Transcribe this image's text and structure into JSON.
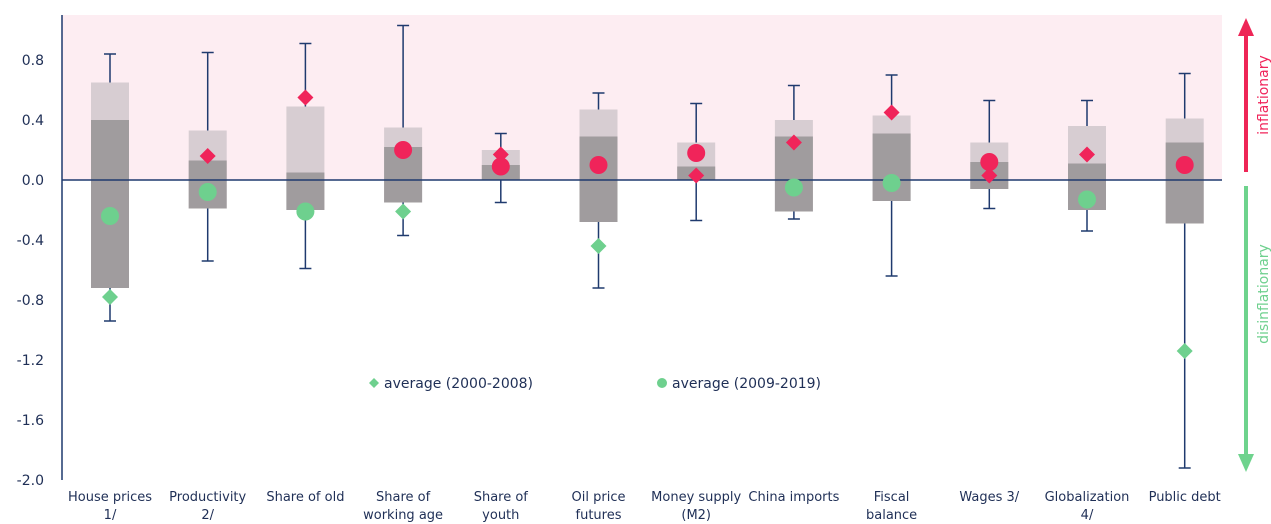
{
  "chart_data": {
    "type": "box-range",
    "ylim": [
      -2.0,
      1.0
    ],
    "yticks": [
      "0.8",
      "0.4",
      "0.0",
      "-0.4",
      "-0.8",
      "-1.2",
      "-1.6",
      "-2.0"
    ],
    "ytick_values": [
      0.8,
      0.4,
      0.0,
      -0.4,
      -0.8,
      -1.2,
      -1.6,
      -2.0
    ],
    "categories": [
      [
        "House prices",
        "1/"
      ],
      [
        "Productivity",
        "2/"
      ],
      [
        "Share of old"
      ],
      [
        "Share of",
        "working age"
      ],
      [
        "Share of",
        "youth"
      ],
      [
        "Oil price",
        "futures"
      ],
      [
        "Money supply",
        "(M2)"
      ],
      [
        "China imports"
      ],
      [
        "Fiscal",
        "balance"
      ],
      [
        "Wages 3/"
      ],
      [
        "Globalization",
        "4/"
      ],
      [
        "Public debt"
      ]
    ],
    "whisker_low": [
      -0.94,
      -0.54,
      -0.59,
      -0.37,
      -0.15,
      -0.72,
      -0.27,
      -0.26,
      -0.64,
      -0.19,
      -0.34,
      -1.92
    ],
    "whisker_high": [
      0.84,
      0.85,
      0.91,
      1.03,
      0.31,
      0.58,
      0.51,
      0.63,
      0.7,
      0.53,
      0.53,
      0.71
    ],
    "outer_low": [
      -0.72,
      -0.19,
      -0.2,
      -0.15,
      0.0,
      -0.28,
      0.0,
      -0.21,
      -0.14,
      -0.06,
      -0.2,
      -0.29
    ],
    "outer_high": [
      0.65,
      0.33,
      0.49,
      0.35,
      0.2,
      0.47,
      0.25,
      0.4,
      0.43,
      0.25,
      0.36,
      0.41
    ],
    "inner_high": [
      0.4,
      0.13,
      0.05,
      0.22,
      0.1,
      0.29,
      0.09,
      0.29,
      0.31,
      0.12,
      0.11,
      0.25
    ],
    "series": [
      {
        "name": "average (2000-2008)",
        "marker": "diamond",
        "pos_values": [
          null,
          0.16,
          0.55,
          null,
          0.17,
          null,
          0.03,
          0.25,
          0.45,
          0.03,
          0.17,
          null
        ],
        "neg_values": [
          -0.78,
          null,
          null,
          -0.21,
          null,
          -0.44,
          null,
          null,
          null,
          null,
          null,
          -1.14
        ]
      },
      {
        "name": "average (2009-2019)",
        "marker": "circle",
        "pos_values": [
          null,
          null,
          null,
          0.2,
          0.09,
          0.1,
          0.18,
          null,
          null,
          0.12,
          null,
          0.1
        ],
        "neg_values": [
          -0.24,
          -0.08,
          -0.21,
          null,
          null,
          null,
          null,
          -0.05,
          -0.02,
          null,
          -0.13,
          null
        ]
      }
    ],
    "side_labels": {
      "top": "inflationary",
      "bottom": "disinflationary"
    },
    "legend": [
      {
        "label": "average (2000-2008)",
        "marker": "diamond"
      },
      {
        "label": "average (2009-2019)",
        "marker": "circle"
      }
    ],
    "colors": {
      "positive": "#f0245a",
      "negative": "#6ed08e",
      "axis": "#1f3a6e",
      "whisker": "#1f3a6e",
      "outer_box": "#d7cdd2",
      "inner_box": "#a09c9e",
      "shade": "#fdedf2",
      "up_arrow": "#ee2556",
      "down_arrow": "#6ed38d",
      "legend_text": "#1f2f56"
    }
  }
}
